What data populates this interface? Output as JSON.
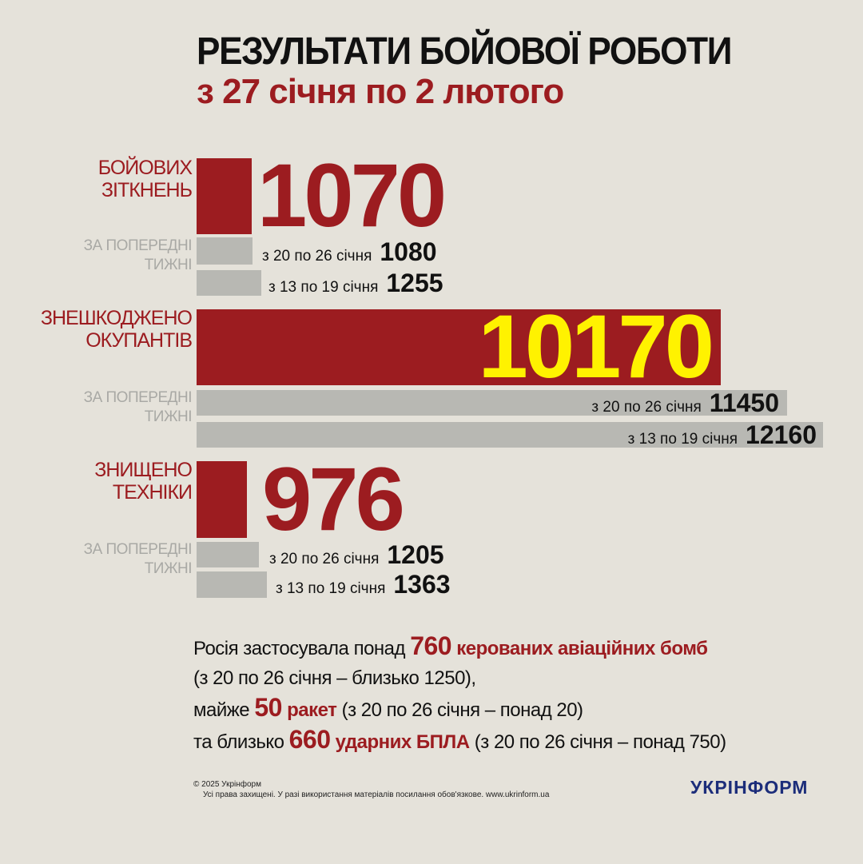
{
  "header": {
    "title": "РЕЗУЛЬТАТИ БОЙОВОЇ РОБОТИ",
    "subtitle": "з 27 січня по 2 лютого"
  },
  "colors": {
    "accent": "#9c1c20",
    "highlight": "#fff200",
    "previous": "#b8b8b3",
    "background": "#e5e2da"
  },
  "chart_data": {
    "type": "bar",
    "title": "РЕЗУЛЬТАТИ БОЙОВОЇ РОБОТИ з 27 січня по 2 лютого",
    "previous_label": "ЗА ПОПЕРЕДНІ ТИЖНІ",
    "groups": [
      {
        "category": "БОЙОВИХ ЗІТКНЕНЬ",
        "current": 1070,
        "current_label": "1070",
        "previous": [
          {
            "period": "з 20 по 26 січня",
            "value": 1080,
            "label": "1080"
          },
          {
            "period": "з 13  по 19 січня",
            "value": 1255,
            "label": "1255"
          }
        ]
      },
      {
        "category": "ЗНЕШКОДЖЕНО ОКУПАНТІВ",
        "current": 10170,
        "current_label": "10170",
        "previous": [
          {
            "period": "з 20 по 26 січня",
            "value": 11450,
            "label": "11450"
          },
          {
            "period": "з 13  по 19 січня",
            "value": 12160,
            "label": "12160"
          }
        ]
      },
      {
        "category": "ЗНИЩЕНО ТЕХНІКИ",
        "current": 976,
        "current_label": "976",
        "previous": [
          {
            "period": "з 20 по 26 січня",
            "value": 1205,
            "label": "1205"
          },
          {
            "period": "з 13  по 19 січня",
            "value": 1363,
            "label": "1363"
          }
        ]
      }
    ]
  },
  "labels": {
    "g0": [
      "БОЙОВИХ",
      "ЗІТКНЕНЬ"
    ],
    "g1": [
      "ЗНЕШКОДЖЕНО",
      "ОКУПАНТІВ"
    ],
    "g2": [
      "ЗНИЩЕНО",
      "ТЕХНІКИ"
    ],
    "prev": [
      "ЗА ПОПЕРЕДНІ",
      "ТИЖНІ"
    ]
  },
  "note": {
    "l1a": "Росія застосувала понад ",
    "l1n": "760",
    "l1b": " керованих авіаційних бомб",
    "l2": "(з 20 по 26 січня – близько 1250),",
    "l3a": "майже ",
    "l3n": "50",
    "l3b": " ракет",
    "l3c": " (з 20 по 26 січня – понад 20)",
    "l4a": "та близько ",
    "l4n": "660",
    "l4b": " ударних БПЛА",
    "l4c": " (з 20 по 26 січня – понад 750)"
  },
  "footer": {
    "copyright": "© 2025 Укрінформ",
    "rights": "Усі права захищені. У разі використання матеріалів посилання обов'язкове. www.ukrinform.ua",
    "logo": "УКРІНФОРМ"
  }
}
